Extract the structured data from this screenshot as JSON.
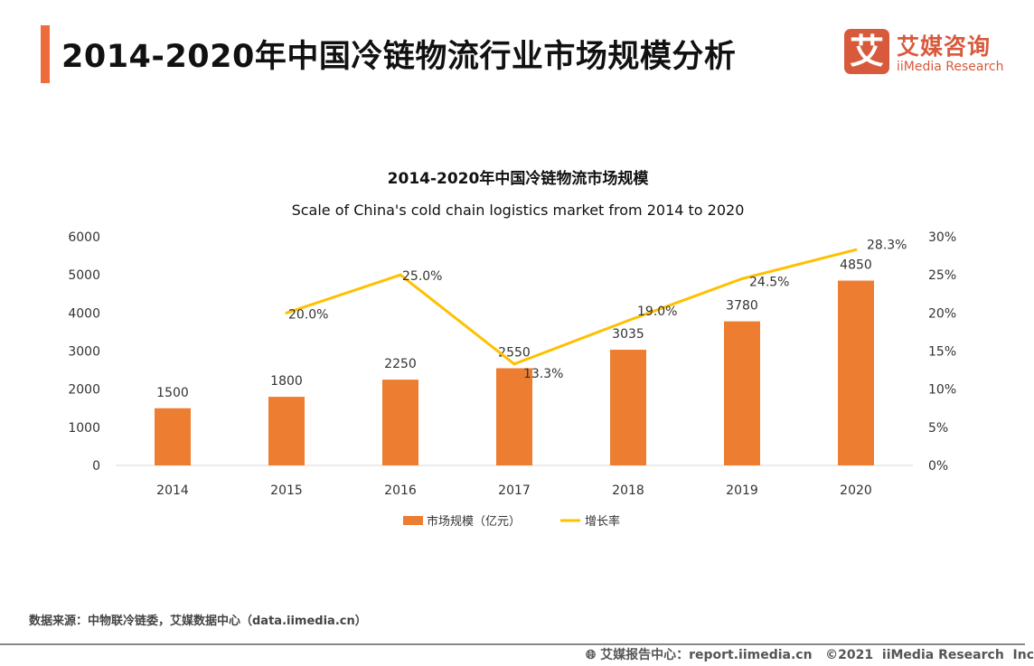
{
  "header": {
    "title": "2014-2020年中国冷链物流行业市场规模分析",
    "logo_mark": "艾",
    "logo_cn": "艾媒咨询",
    "logo_en": "iiMedia Research"
  },
  "chart_data": {
    "type": "bar+line",
    "title": "2014-2020年中国冷链物流市场规模",
    "subtitle": "Scale of China's cold chain logistics market from 2014 to 2020",
    "categories": [
      "2014",
      "2015",
      "2016",
      "2017",
      "2018",
      "2019",
      "2020"
    ],
    "series": [
      {
        "name": "市场规模（亿元）",
        "type": "bar",
        "axis": "left",
        "color": "#ed7d31",
        "values": [
          1500,
          1800,
          2250,
          2550,
          3035,
          3780,
          4850
        ],
        "labels": [
          "1500",
          "1800",
          "2250",
          "2550",
          "3035",
          "3780",
          "4850"
        ]
      },
      {
        "name": "增长率",
        "type": "line",
        "axis": "right",
        "color": "#ffc000",
        "values": [
          null,
          20.0,
          25.0,
          13.3,
          19.0,
          24.5,
          28.3
        ],
        "labels": [
          "",
          "20.0%",
          "25.0%",
          "13.3%",
          "19.0%",
          "24.5%",
          "28.3%"
        ]
      }
    ],
    "left_axis": {
      "ylim": [
        0,
        6000
      ],
      "ticks": [
        "0",
        "1000",
        "2000",
        "3000",
        "4000",
        "5000",
        "6000"
      ]
    },
    "right_axis": {
      "ylim": [
        0,
        30
      ],
      "ticks": [
        "0%",
        "5%",
        "10%",
        "15%",
        "20%",
        "25%",
        "30%"
      ]
    },
    "grid": false,
    "legend": "bottom"
  },
  "source": "数据来源：中物联冷链委，艾媒数据中心（data.iimedia.cn）",
  "footer": {
    "icon": "globe-cursor-icon",
    "text": "艾媒报告中心：report.iimedia.cn   ©2021  iiMedia Research  Inc"
  }
}
